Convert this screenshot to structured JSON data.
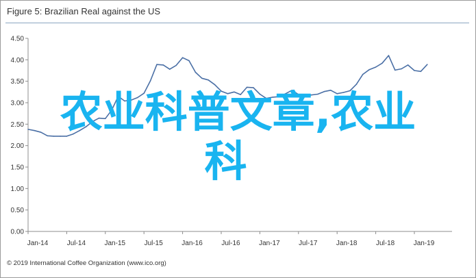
{
  "figure_title": "Figure 5: Brazilian Real against the US",
  "copyright": "© 2019 International Coffee Organization (www.ico.org)",
  "watermark": {
    "line1": "农业科普文章,农业",
    "line2": "科",
    "color": "#19b4f0"
  },
  "colors": {
    "line": "#4a6fa5",
    "axis": "#8c8c8c",
    "title_rule": "#8aa6c1"
  },
  "chart_data": {
    "type": "line",
    "title": "Figure 5: Brazilian Real against the US",
    "xlabel": "",
    "ylabel": "",
    "ylim": [
      0.0,
      4.5
    ],
    "y_ticks": [
      "0.00",
      "0.50",
      "1.00",
      "1.50",
      "2.00",
      "2.50",
      "3.00",
      "3.50",
      "4.00",
      "4.50"
    ],
    "x_ticks": [
      "Jan-14",
      "Jul-14",
      "Jan-15",
      "Jul-15",
      "Jan-16",
      "Jul-16",
      "Jan-17",
      "Jul-17",
      "Jan-18",
      "Jul-18",
      "Jan-19"
    ],
    "grid": false,
    "series": [
      {
        "x": [
          "2014-01",
          "2014-02",
          "2014-03",
          "2014-04",
          "2014-05",
          "2014-06",
          "2014-07",
          "2014-08",
          "2014-09",
          "2014-10",
          "2014-11",
          "2014-12",
          "2015-01",
          "2015-02",
          "2015-03",
          "2015-04",
          "2015-05",
          "2015-06",
          "2015-07",
          "2015-08",
          "2015-09",
          "2015-10",
          "2015-11",
          "2015-12",
          "2016-01",
          "2016-02",
          "2016-03",
          "2016-04",
          "2016-05",
          "2016-06",
          "2016-07",
          "2016-08",
          "2016-09",
          "2016-10",
          "2016-11",
          "2016-12",
          "2017-01",
          "2017-02",
          "2017-03",
          "2017-04",
          "2017-05",
          "2017-06",
          "2017-07",
          "2017-08",
          "2017-09",
          "2017-10",
          "2017-11",
          "2017-12",
          "2018-01",
          "2018-02",
          "2018-03",
          "2018-04",
          "2018-05",
          "2018-06",
          "2018-07",
          "2018-08",
          "2018-09",
          "2018-10",
          "2018-11",
          "2018-12",
          "2019-01",
          "2019-02",
          "2019-03"
        ],
        "values": [
          2.38,
          2.35,
          2.31,
          2.23,
          2.22,
          2.22,
          2.22,
          2.27,
          2.35,
          2.44,
          2.56,
          2.64,
          2.63,
          2.83,
          3.15,
          3.04,
          3.06,
          3.12,
          3.22,
          3.51,
          3.89,
          3.88,
          3.78,
          3.87,
          4.05,
          3.98,
          3.71,
          3.57,
          3.53,
          3.42,
          3.27,
          3.21,
          3.25,
          3.19,
          3.36,
          3.35,
          3.2,
          3.1,
          3.13,
          3.14,
          3.21,
          3.29,
          3.19,
          3.15,
          3.18,
          3.2,
          3.26,
          3.29,
          3.21,
          3.24,
          3.28,
          3.43,
          3.66,
          3.77,
          3.83,
          3.92,
          4.1,
          3.76,
          3.79,
          3.88,
          3.75,
          3.73,
          3.89
        ]
      }
    ]
  }
}
